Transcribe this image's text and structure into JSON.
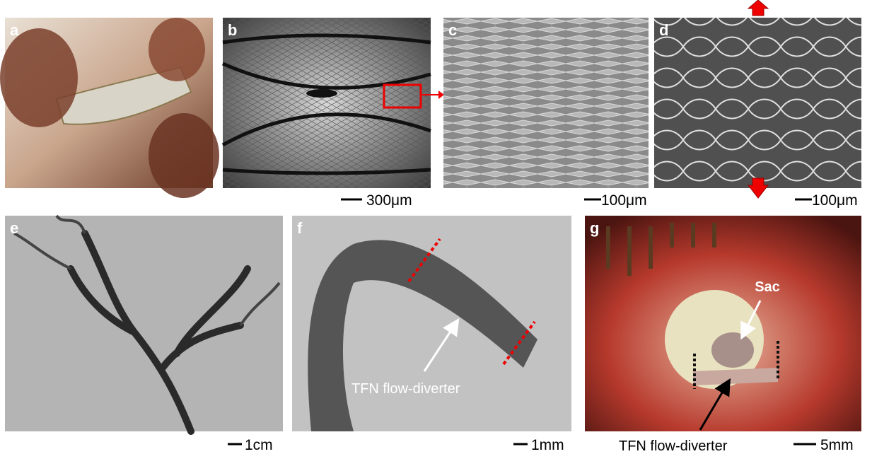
{
  "panels": [
    {
      "label": "a"
    },
    {
      "label": "b",
      "scale_bar": "300μm"
    },
    {
      "label": "c",
      "scale_bar": "100μm"
    },
    {
      "label": "d",
      "scale_bar": "100μm"
    },
    {
      "label": "e",
      "scale_bar": "1cm"
    },
    {
      "label": "f",
      "scale_bar": "1mm",
      "annotation": "TFN flow-diverter"
    },
    {
      "label": "g",
      "scale_bar": "5mm",
      "annotation": "Sac",
      "caption": "TFN flow-diverter"
    }
  ]
}
